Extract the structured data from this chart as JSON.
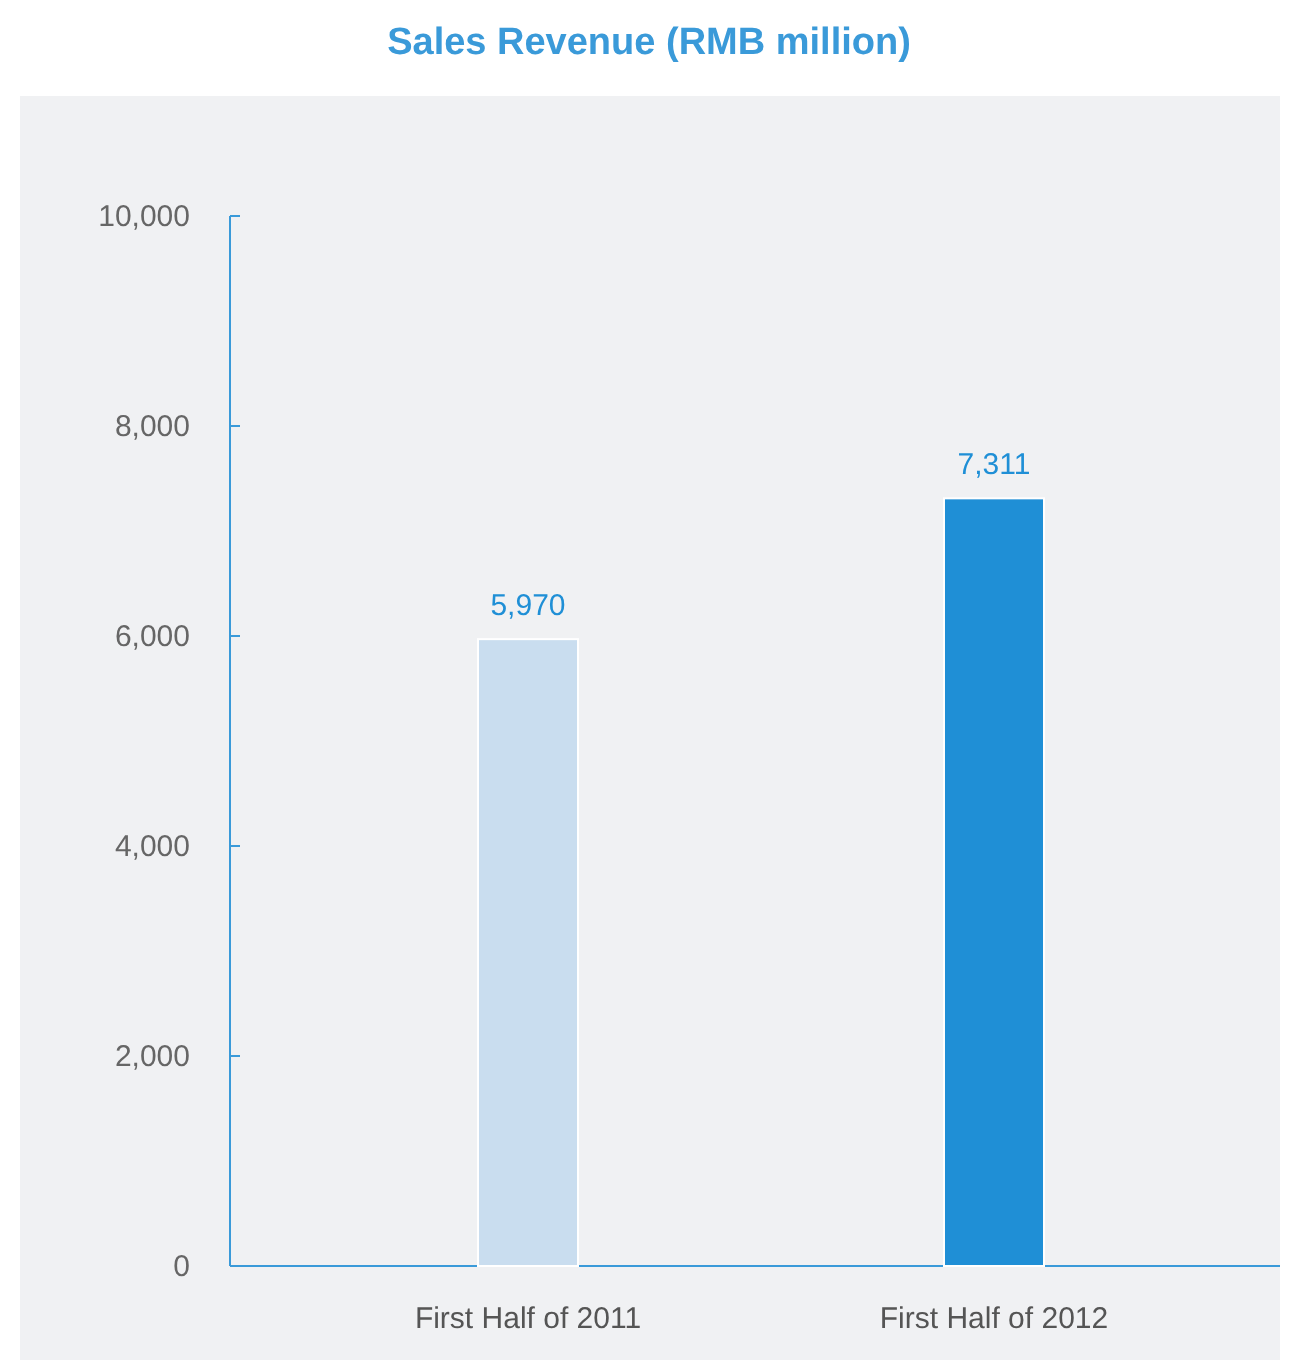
{
  "chart_data": {
    "type": "bar",
    "title": "Sales Revenue (RMB million)",
    "categories": [
      "First Half of 2011",
      "First Half of 2012"
    ],
    "values": [
      5970,
      7311
    ],
    "colors": [
      "#c9ddef",
      "#1f8fd6"
    ],
    "ylim": [
      0,
      10000
    ],
    "yticks": [
      {
        "value": 0,
        "label": "0"
      },
      {
        "value": 2000,
        "label": "2,000"
      },
      {
        "value": 4000,
        "label": "4,000"
      },
      {
        "value": 6000,
        "label": "6,000"
      },
      {
        "value": 8000,
        "label": "8,000"
      },
      {
        "value": 10000,
        "label": "10,000"
      }
    ],
    "data_labels": true,
    "value_labels": [
      "5,970",
      "7,311"
    ],
    "grid": false
  }
}
